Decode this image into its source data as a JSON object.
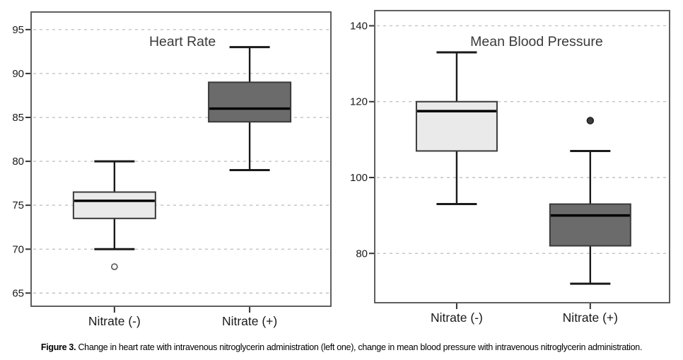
{
  "figure": {
    "caption_label": "Figure 3.",
    "caption_text": " Change in heart rate with intravenous nitroglycerin administration (left one), change in mean blood pressure with intravenous nitroglycerin administration."
  },
  "colors": {
    "light_box": "#eaeaea",
    "dark_box": "#6b6b6b",
    "box_border": "#3a3a3a",
    "median": "#000000",
    "whisker": "#1a1a1a",
    "grid": "#c2c2c2",
    "frame": "#5f5f5f",
    "tick_text": "#1a1a1a",
    "title_text": "#3a3a3a",
    "outlier_open_stroke": "#666666",
    "outlier_filled_fill": "#3d3d3d"
  },
  "chart_data": [
    {
      "type": "boxplot",
      "title": "Heart Rate",
      "categories": [
        "Nitrate (-)",
        "Nitrate (+)"
      ],
      "ylim": [
        63.5,
        97
      ],
      "yticks": [
        65,
        70,
        75,
        80,
        85,
        90,
        95
      ],
      "grid": "dashed-horizontal",
      "series": [
        {
          "category": "Nitrate (-)",
          "whisker_low": 70,
          "q1": 73.5,
          "median": 75.5,
          "q3": 76.5,
          "whisker_high": 80,
          "outliers": [
            {
              "value": 68,
              "style": "open"
            }
          ],
          "fill": "light"
        },
        {
          "category": "Nitrate (+)",
          "whisker_low": 79,
          "q1": 84.5,
          "median": 86,
          "q3": 89,
          "whisker_high": 93,
          "outliers": [],
          "fill": "dark"
        }
      ]
    },
    {
      "type": "boxplot",
      "title": "Mean Blood Pressure",
      "categories": [
        "Nitrate (-)",
        "Nitrate (+)"
      ],
      "ylim": [
        67,
        144
      ],
      "yticks": [
        80,
        100,
        120,
        140
      ],
      "grid": "dashed-horizontal",
      "series": [
        {
          "category": "Nitrate (-)",
          "whisker_low": 93,
          "q1": 107,
          "median": 117.5,
          "q3": 120,
          "whisker_high": 133,
          "outliers": [],
          "fill": "light"
        },
        {
          "category": "Nitrate (+)",
          "whisker_low": 72,
          "q1": 82,
          "median": 90,
          "q3": 93,
          "whisker_high": 107,
          "outliers": [
            {
              "value": 115,
              "style": "filled"
            }
          ],
          "fill": "dark"
        }
      ]
    }
  ]
}
